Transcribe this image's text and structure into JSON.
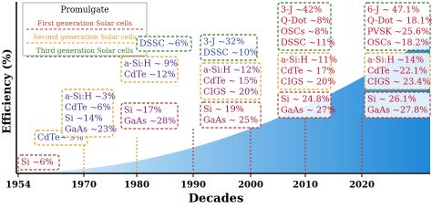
{
  "axis": {
    "y_label": "Efficiency (%)",
    "x_label": "Decades",
    "x_ticks": [
      "1954",
      "1970",
      "1980",
      "1990",
      "2000",
      "2010",
      "2020"
    ]
  },
  "legend": {
    "title": "Promulgate",
    "items": [
      {
        "label": "First generation Solar cells",
        "color": "#c0392b"
      },
      {
        "label": "Second generation Solar cells",
        "color": "#e0a020"
      },
      {
        "label": "Third generation Solar cells",
        "color": "#3a7a2a"
      }
    ]
  },
  "groups": [
    {
      "boxes": [
        {
          "border": "#c0392b",
          "text_color": "#9a1a3a",
          "entries": [
            "Si ~6%"
          ]
        }
      ]
    },
    {
      "boxes": [
        {
          "border": "#e0a020",
          "text_color": "#2a4aa0",
          "entries": [
            "CdTe~ 9%"
          ]
        }
      ]
    },
    {
      "boxes": [
        {
          "border": "#e0a020",
          "text_color": "#4a2a9a",
          "entries": [
            "a-Si:H ~3%",
            "CdTe ~6%",
            "Si ~14%",
            "GaAs ~23%"
          ]
        }
      ]
    },
    {
      "boxes": [
        {
          "border": "#3a7a2a",
          "text_color": "#2a4aa0",
          "entries": [
            "DSSC ~6%"
          ]
        },
        {
          "border": "#e0a020",
          "text_color": "#4a2a9a",
          "entries": [
            "a-Si:H ~ 9%",
            "CdTe ~12%"
          ]
        },
        {
          "border": "#c0392b",
          "text_color": "#7a1a6a",
          "entries": [
            "Si ~17%",
            "GaAs ~28%"
          ]
        }
      ]
    },
    {
      "boxes": [
        {
          "border": "#3a7a2a",
          "text_color": "#2a4aa0",
          "entries": [
            "3-J ~32%",
            "DSSC ~10%"
          ]
        },
        {
          "border": "#e0a020",
          "text_color": "#7a1a6a",
          "entries": [
            "a-Si:H ~12%",
            "CdTe ~ 15%",
            "CIGS ~ 20%"
          ]
        },
        {
          "border": "#c0392b",
          "text_color": "#9a1a3a",
          "entries": [
            "Si ~ 19%",
            "GaAs ~ 25%"
          ]
        }
      ]
    },
    {
      "boxes": [
        {
          "border": "#3a7a2a",
          "text_color": "#c0102a",
          "entries": [
            "3-J ~42%",
            "Q-Dot ~8%",
            "OSCs ~8%",
            "DSSC ~11%"
          ]
        },
        {
          "border": "#e0a020",
          "text_color": "#c0102a",
          "entries": [
            "a-Si:H ~11%",
            "CdTe ~ 17%",
            "CIGS ~ 20%"
          ]
        },
        {
          "border": "#c0392b",
          "text_color": "#c0102a",
          "entries": [
            "Si ~ 24.8%",
            "GaAs ~ 27%"
          ]
        }
      ]
    },
    {
      "boxes": [
        {
          "border": "#3a7a2a",
          "text_color": "#c0102a",
          "entries": [
            "6-J ~ 47.1%",
            "Q-Dot ~ 18.1%",
            "PVSK ~25.6%",
            "OSCs ~18.2%"
          ]
        },
        {
          "border": "#e0a020",
          "text_color": "#c0102a",
          "entries": [
            "a-Si:H ~14%",
            "CdTe ~22.1%",
            "CIGS ~ 23.4%"
          ]
        },
        {
          "border": "#c0392b",
          "text_color": "#c0102a",
          "entries": [
            "Si ~ 26.1%",
            "GaAs ~27.8%"
          ]
        }
      ]
    }
  ]
}
